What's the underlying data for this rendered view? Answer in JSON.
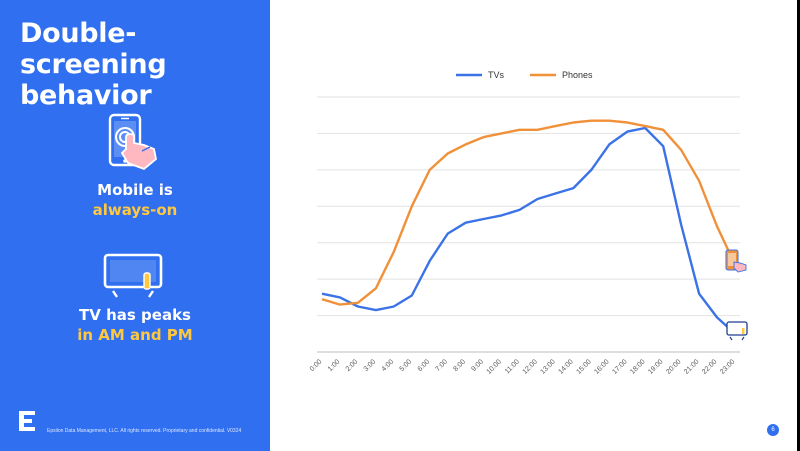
{
  "slide": {
    "title_line1": "Double-screening",
    "title_line2": "behavior",
    "mobile_caption_line1": "Mobile is",
    "mobile_caption_line2": "always-on",
    "tv_caption_line1": "TV has peaks",
    "tv_caption_line2": "in AM and PM",
    "footer": "Epsilon Data Management, LLC. All rights reserved. Proprietary and confidential. V0324",
    "page_number": "6"
  },
  "colors": {
    "panel": "#2f6ff0",
    "highlight": "#ffc83d",
    "tv_series": "#3b73e6",
    "phones_series": "#f0913a"
  },
  "icons": {
    "mobile": "phone-touch-icon",
    "tv": "tv-icon",
    "logo": "epsilon-logo-icon"
  },
  "chart_data": {
    "type": "line",
    "title": "",
    "xlabel": "",
    "ylabel": "",
    "legend_position": "top",
    "grid": true,
    "ylim": [
      0,
      7
    ],
    "categories": [
      "0:00",
      "1:00",
      "2:00",
      "3:00",
      "4:00",
      "5:00",
      "6:00",
      "7:00",
      "8:00",
      "9:00",
      "10:00",
      "11:00",
      "12:00",
      "13:00",
      "14:00",
      "15:00",
      "16:00",
      "17:00",
      "18:00",
      "19:00",
      "20:00",
      "21:00",
      "22:00",
      "23:00"
    ],
    "series": [
      {
        "name": "TVs",
        "color": "#3b73e6",
        "values": [
          1.6,
          1.5,
          1.25,
          1.15,
          1.25,
          1.55,
          2.5,
          3.25,
          3.55,
          3.65,
          3.75,
          3.9,
          4.2,
          4.35,
          4.5,
          5.0,
          5.7,
          6.05,
          6.15,
          5.65,
          3.5,
          1.6,
          0.95,
          0.5
        ]
      },
      {
        "name": "Phones",
        "color": "#f0913a",
        "values": [
          1.45,
          1.3,
          1.35,
          1.75,
          2.75,
          4.0,
          5.0,
          5.45,
          5.7,
          5.9,
          6.0,
          6.1,
          6.1,
          6.2,
          6.3,
          6.35,
          6.35,
          6.3,
          6.2,
          6.1,
          5.55,
          4.7,
          3.45,
          2.4
        ]
      }
    ]
  }
}
